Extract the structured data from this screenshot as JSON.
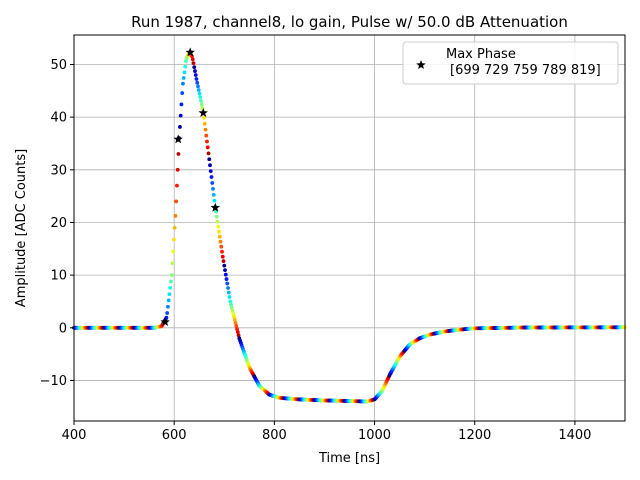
{
  "chart_data": {
    "type": "scatter",
    "title": "Run 1987, channel8, lo gain, Pulse w/ 50.0 dB Attenuation",
    "xlabel": "Time [ns]",
    "ylabel": "Amplitude [ADC Counts]",
    "xlim": [
      400,
      1500
    ],
    "ylim": [
      -17.7,
      55.6
    ],
    "xticks": [
      400,
      600,
      800,
      1000,
      1200,
      1400
    ],
    "yticks": [
      -10,
      0,
      10,
      20,
      30,
      40,
      50
    ],
    "grid": true,
    "legend_position": "top-right",
    "legend": {
      "title": "Max Phase",
      "entry": "[699 729 759 789 819]"
    },
    "colormap": "jet",
    "colors": {
      "marker": "#000000",
      "grid": "#b0b0b0",
      "axes": "#000000"
    },
    "pulse_curve": {
      "x": [
        400,
        560,
        575,
        585,
        595,
        603,
        610,
        617,
        624,
        630,
        636,
        645,
        658,
        670,
        682,
        697,
        712,
        730,
        750,
        770,
        790,
        810,
        850,
        900,
        950,
        985,
        1000,
        1015,
        1030,
        1050,
        1070,
        1090,
        1110,
        1140,
        1170,
        1200,
        1300,
        1500
      ],
      "y": [
        0,
        0,
        0.3,
        2,
        10,
        22,
        36,
        46,
        51,
        52.3,
        51.5,
        47,
        41,
        32,
        23,
        13.5,
        5,
        -2,
        -7.5,
        -11,
        -12.7,
        -13.3,
        -13.6,
        -13.8,
        -13.9,
        -14.0,
        -13.6,
        -12,
        -9,
        -5.5,
        -3.2,
        -2,
        -1.3,
        -0.7,
        -0.35,
        -0.1,
        0.05,
        0.1
      ]
    },
    "markers": {
      "x": [
        582,
        608,
        632,
        658,
        682
      ],
      "y": [
        1.1,
        35.8,
        52.3,
        40.8,
        22.8
      ]
    }
  }
}
